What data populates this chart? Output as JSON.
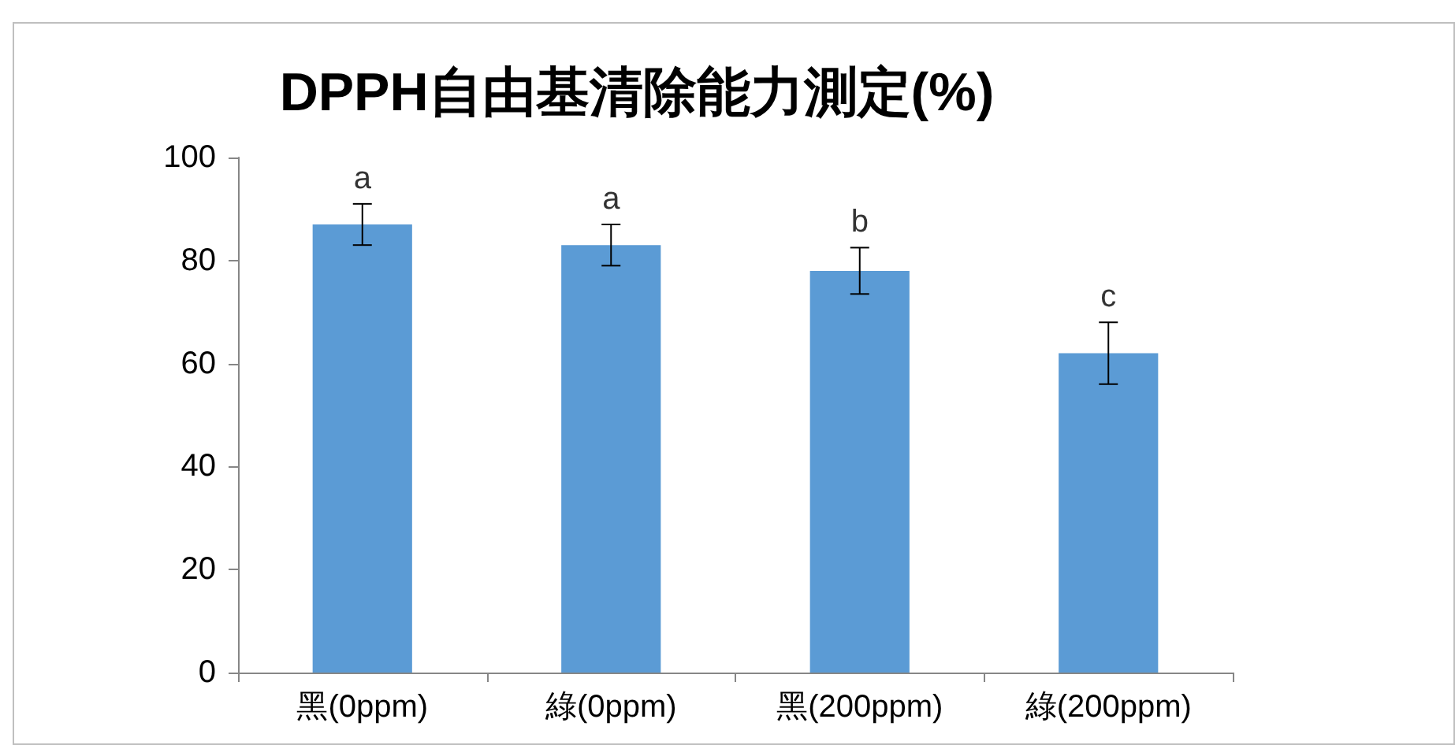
{
  "chart_data": {
    "type": "bar",
    "title": "DPPH自由基清除能力測定(%)",
    "categories": [
      "黑(0ppm)",
      "綠(0ppm)",
      "黑(200ppm)",
      "綠(200ppm)"
    ],
    "values": [
      87,
      83,
      78,
      62
    ],
    "errors": [
      4,
      4,
      4.5,
      6
    ],
    "color": "#5b9bd5",
    "ylim": [
      0,
      100
    ],
    "yticks": [
      0,
      20,
      40,
      60,
      80,
      100
    ],
    "grid": false,
    "annotations": [
      {
        "text": "a",
        "x": "黑(0ppm)",
        "y": 91
      },
      {
        "text": "a",
        "x": "綠(0ppm)",
        "y": 87
      },
      {
        "text": "b",
        "x": "黑(200ppm)",
        "y": 82.5
      },
      {
        "text": "c",
        "x": "綠(200ppm)",
        "y": 68
      }
    ]
  }
}
